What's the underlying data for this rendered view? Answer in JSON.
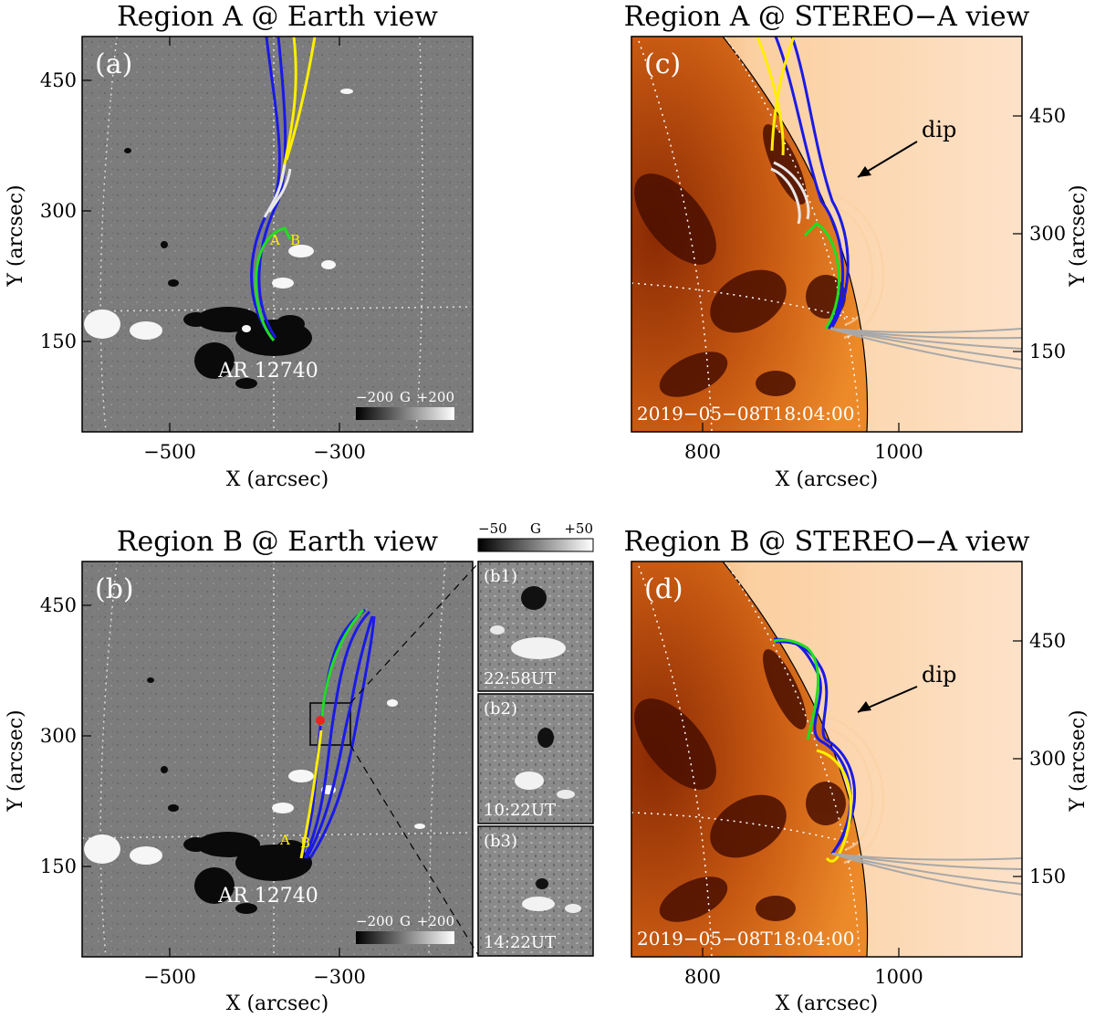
{
  "panels": {
    "a": {
      "title": "Region A @ Earth view",
      "label": "(a)",
      "xlabel": "X (arcsec)",
      "ylabel": "Y (arcsec)",
      "xticks": [
        "−500",
        "−300"
      ],
      "yticks": [
        "450",
        "300",
        "150"
      ],
      "ar_label": "AR 12740",
      "footpoint_a": "A",
      "footpoint_b": "B",
      "colorbar": {
        "min": "−200",
        "unit": "G",
        "max": "+200"
      }
    },
    "b": {
      "title": "Region B @ Earth view",
      "label": "(b)",
      "xlabel": "X (arcsec)",
      "ylabel": "Y (arcsec)",
      "xticks": [
        "−500",
        "−300"
      ],
      "yticks": [
        "450",
        "300",
        "150"
      ],
      "ar_label": "AR 12740",
      "footpoint_a": "A",
      "footpoint_b": "B",
      "colorbar": {
        "min": "−200",
        "unit": "G",
        "max": "+200"
      },
      "inset_colorbar": {
        "min": "−50",
        "unit": "G",
        "max": "+50"
      },
      "insets": [
        {
          "label": "(b1)",
          "time": "22:58UT"
        },
        {
          "label": "(b2)",
          "time": "10:22UT"
        },
        {
          "label": "(b3)",
          "time": "14:22UT"
        }
      ]
    },
    "c": {
      "title": "Region A @ STEREO−A view",
      "label": "(c)",
      "xlabel": "X (arcsec)",
      "ylabel": "Y (arcsec)",
      "xticks": [
        "800",
        "1000"
      ],
      "yticks": [
        "450",
        "300",
        "150"
      ],
      "annotation": "dip",
      "timestamp": "2019−05−08T18:04:00"
    },
    "d": {
      "title": "Region B @ STEREO−A view",
      "label": "(d)",
      "xlabel": "X (arcsec)",
      "ylabel": "Y (arcsec)",
      "xticks": [
        "800",
        "1000"
      ],
      "yticks": [
        "450",
        "300",
        "150"
      ],
      "annotation": "dip",
      "timestamp": "2019−05−08T18:04:00"
    }
  },
  "colors": {
    "blue_fieldline": "#1a1ae6",
    "green_fieldline": "#22dd22",
    "yellow_fieldline": "#ffee00",
    "white_fieldline": "#e8e8e8",
    "gray_fieldline": "#a8a8a8",
    "footpoint_label": "#ffee00",
    "marker": "#ee2222",
    "euv_dark": "#4a0f00",
    "euv_mid": "#e06a10",
    "euv_light": "#fbd2a6",
    "magnetogram_bg": "#7c7c7c"
  }
}
